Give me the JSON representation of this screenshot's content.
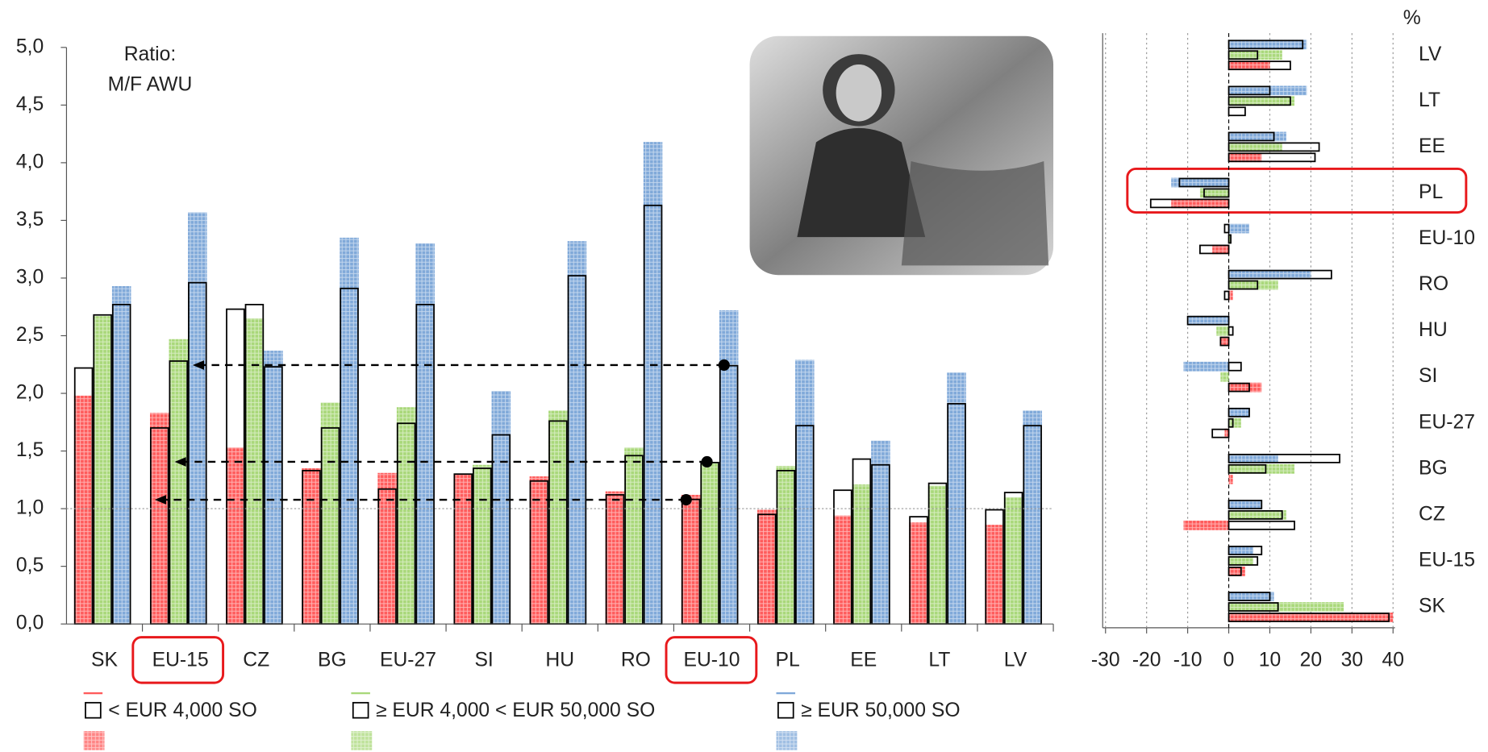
{
  "chart_data": [
    {
      "type": "bar",
      "annotation": [
        "Ratio:",
        "M/F AWU"
      ],
      "categories": [
        "SK",
        "EU-15",
        "CZ",
        "BG",
        "EU-27",
        "SI",
        "HU",
        "RO",
        "EU-10",
        "PL",
        "EE",
        "LT",
        "LV"
      ],
      "series": [
        {
          "name": "< EUR 4,000 SO",
          "color": "#ff5c5c",
          "values": [
            1.98,
            1.83,
            1.53,
            1.35,
            1.31,
            1.3,
            1.28,
            1.15,
            1.12,
            0.99,
            0.94,
            0.88,
            0.86
          ],
          "outline_values": [
            2.22,
            1.7,
            2.73,
            1.33,
            1.17,
            1.3,
            1.24,
            1.12,
            1.08,
            0.95,
            1.16,
            0.93,
            0.99
          ]
        },
        {
          "name": "≥ EUR 4,000 < EUR 50,000 SO",
          "color": "#a9d87a",
          "values": [
            2.67,
            2.47,
            2.65,
            1.92,
            1.88,
            1.38,
            1.85,
            1.53,
            1.4,
            1.37,
            1.21,
            1.2,
            1.1
          ],
          "outline_values": [
            2.68,
            2.28,
            2.77,
            1.7,
            1.74,
            1.35,
            1.76,
            1.46,
            1.4,
            1.33,
            1.43,
            1.22,
            1.14
          ]
        },
        {
          "name": "≥ EUR 50,000 SO",
          "color": "#80a9d9",
          "values": [
            2.93,
            3.57,
            2.37,
            3.35,
            3.3,
            2.02,
            3.32,
            4.18,
            2.72,
            2.29,
            1.59,
            2.18,
            1.85
          ],
          "outline_values": [
            2.77,
            2.96,
            2.23,
            2.91,
            2.77,
            1.64,
            3.02,
            3.63,
            2.24,
            1.72,
            1.38,
            1.91,
            1.72
          ]
        }
      ],
      "ylim": [
        0,
        5
      ],
      "yticks": [
        {
          "value": 0,
          "label": "0,0"
        },
        {
          "value": 0.5,
          "label": "0,5"
        },
        {
          "value": 1,
          "label": "1,0"
        },
        {
          "value": 1.5,
          "label": "1,5"
        },
        {
          "value": 2,
          "label": "2,0"
        },
        {
          "value": 2.5,
          "label": "2,5"
        },
        {
          "value": 3,
          "label": "3,0"
        },
        {
          "value": 3.5,
          "label": "3,5"
        },
        {
          "value": 4,
          "label": "4,0"
        },
        {
          "value": 4.5,
          "label": "4,5"
        },
        {
          "value": 5,
          "label": "5,0"
        }
      ],
      "reference_line": 1
    },
    {
      "type": "hbar",
      "unit": "%",
      "categories": [
        "LV",
        "LT",
        "EE",
        "PL",
        "EU-10",
        "RO",
        "HU",
        "SI",
        "EU-27",
        "BG",
        "CZ",
        "EU-15",
        "SK"
      ],
      "series": [
        {
          "color": "#80a9d9",
          "values": [
            19,
            19,
            14,
            -14,
            5,
            20,
            -10,
            -11,
            5,
            12,
            8,
            6,
            11
          ],
          "outline_values": [
            18,
            10,
            11,
            -12,
            -1,
            25,
            -10,
            3,
            5,
            27,
            8,
            8,
            10
          ]
        },
        {
          "color": "#a9d87a",
          "values": [
            13,
            16,
            13,
            -7,
            0.5,
            12,
            -3,
            -2,
            3,
            16,
            14,
            6,
            28
          ],
          "outline_values": [
            7,
            15,
            22,
            -6,
            0.5,
            7,
            1,
            0,
            1,
            9,
            13,
            7,
            12
          ]
        },
        {
          "color": "#ff5c5c",
          "values": [
            10,
            0,
            8,
            -14,
            -4,
            1,
            -2,
            8,
            -1,
            1,
            -11,
            4,
            40
          ],
          "outline_values": [
            15,
            4,
            21,
            -19,
            -7,
            -1,
            -2,
            5,
            -4,
            0,
            16,
            3,
            39
          ]
        }
      ],
      "xlim": [
        -30,
        40
      ],
      "xticks": [
        -30,
        -20,
        -10,
        0,
        10,
        20,
        30,
        40
      ],
      "grid": true
    }
  ]
}
